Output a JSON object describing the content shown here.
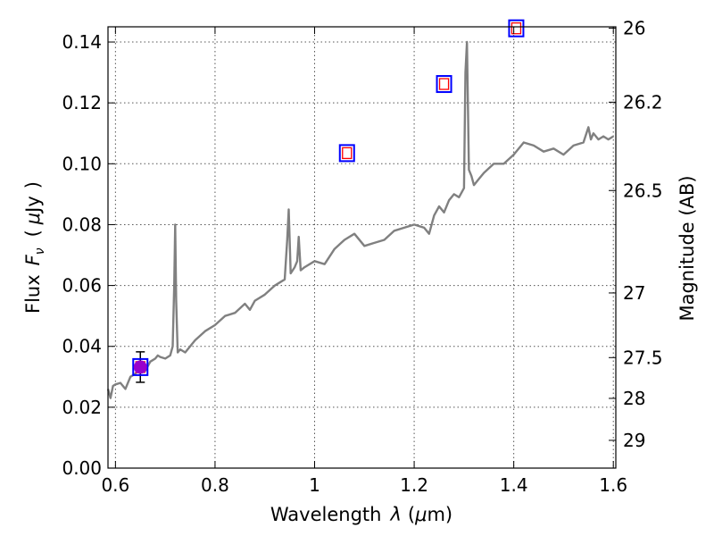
{
  "chart_data": {
    "type": "line",
    "xlabel": {
      "prefix": "Wavelength",
      "symbol": "λ",
      "unit_open": "(",
      "unit_mu": "μ",
      "unit_rest": "m)"
    },
    "ylabel": {
      "prefix": "Flux",
      "symbol": "F",
      "subscript": "ν",
      "unit_open": "(",
      "unit_mu": "μ",
      "unit_rest": "Jy",
      "unit_close": ")"
    },
    "y2label": "Magnitude (AB)",
    "xlim": [
      0.585,
      1.605
    ],
    "ylim": [
      0.0,
      0.145
    ],
    "grid": true,
    "x_ticks": [
      {
        "value": 0.6,
        "label": "0.6"
      },
      {
        "value": 0.8,
        "label": "0.8"
      },
      {
        "value": 1.0,
        "label": "1"
      },
      {
        "value": 1.2,
        "label": "1.2"
      },
      {
        "value": 1.4,
        "label": "1.4"
      },
      {
        "value": 1.6,
        "label": "1.6"
      }
    ],
    "y_ticks": [
      {
        "value": 0.0,
        "label": "0.00"
      },
      {
        "value": 0.02,
        "label": "0.02"
      },
      {
        "value": 0.04,
        "label": "0.04"
      },
      {
        "value": 0.06,
        "label": "0.06"
      },
      {
        "value": 0.08,
        "label": "0.08"
      },
      {
        "value": 0.1,
        "label": "0.10"
      },
      {
        "value": 0.12,
        "label": "0.12"
      },
      {
        "value": 0.14,
        "label": "0.14"
      }
    ],
    "y2_ticks": [
      {
        "value": 26.0,
        "label": "26"
      },
      {
        "value": 26.2,
        "label": "26.2"
      },
      {
        "value": 26.5,
        "label": "26.5"
      },
      {
        "value": 27.0,
        "label": "27"
      },
      {
        "value": 27.5,
        "label": "27.5"
      },
      {
        "value": 28.0,
        "label": "28"
      },
      {
        "value": 29.0,
        "label": "29"
      }
    ],
    "y2_zero_point_ujy": 3631000000,
    "spectrum": {
      "color": "#808080",
      "x": [
        0.585,
        0.59,
        0.595,
        0.6,
        0.61,
        0.62,
        0.63,
        0.64,
        0.65,
        0.66,
        0.67,
        0.68,
        0.685,
        0.69,
        0.7,
        0.71,
        0.715,
        0.718,
        0.72,
        0.722,
        0.725,
        0.73,
        0.74,
        0.75,
        0.76,
        0.78,
        0.8,
        0.82,
        0.84,
        0.86,
        0.87,
        0.88,
        0.9,
        0.92,
        0.93,
        0.94,
        0.945,
        0.948,
        0.952,
        0.96,
        0.965,
        0.968,
        0.972,
        0.98,
        1.0,
        1.02,
        1.04,
        1.06,
        1.08,
        1.1,
        1.12,
        1.14,
        1.16,
        1.18,
        1.2,
        1.22,
        1.23,
        1.24,
        1.25,
        1.26,
        1.27,
        1.28,
        1.29,
        1.3,
        1.303,
        1.306,
        1.31,
        1.315,
        1.32,
        1.33,
        1.34,
        1.36,
        1.38,
        1.4,
        1.42,
        1.44,
        1.46,
        1.48,
        1.5,
        1.52,
        1.54,
        1.55,
        1.555,
        1.56,
        1.57,
        1.58,
        1.59,
        1.6
      ],
      "y": [
        0.026,
        0.023,
        0.027,
        0.0275,
        0.028,
        0.026,
        0.03,
        0.031,
        0.033,
        0.032,
        0.035,
        0.036,
        0.037,
        0.0365,
        0.036,
        0.037,
        0.04,
        0.06,
        0.08,
        0.055,
        0.038,
        0.039,
        0.038,
        0.04,
        0.042,
        0.045,
        0.047,
        0.05,
        0.051,
        0.054,
        0.052,
        0.055,
        0.057,
        0.06,
        0.061,
        0.062,
        0.075,
        0.085,
        0.064,
        0.066,
        0.068,
        0.076,
        0.065,
        0.066,
        0.068,
        0.067,
        0.072,
        0.075,
        0.077,
        0.073,
        0.074,
        0.075,
        0.078,
        0.079,
        0.08,
        0.079,
        0.077,
        0.083,
        0.086,
        0.084,
        0.088,
        0.09,
        0.089,
        0.092,
        0.13,
        0.14,
        0.098,
        0.096,
        0.093,
        0.095,
        0.097,
        0.1,
        0.1,
        0.103,
        0.107,
        0.106,
        0.104,
        0.105,
        0.103,
        0.106,
        0.107,
        0.112,
        0.108,
        0.11,
        0.108,
        0.109,
        0.108,
        0.109
      ]
    },
    "photometry_model": {
      "marker": "square",
      "outer_color": "#0000ff",
      "inner_color": "#ff0000",
      "x": [
        0.65,
        1.065,
        1.26,
        1.405
      ],
      "y": [
        0.0332,
        0.1035,
        0.1262,
        0.1445
      ]
    },
    "photometry_observed": {
      "marker": "circle",
      "color": "#9900cc",
      "x": [
        0.65
      ],
      "y": [
        0.0332
      ],
      "yerr": [
        0.005
      ]
    }
  }
}
